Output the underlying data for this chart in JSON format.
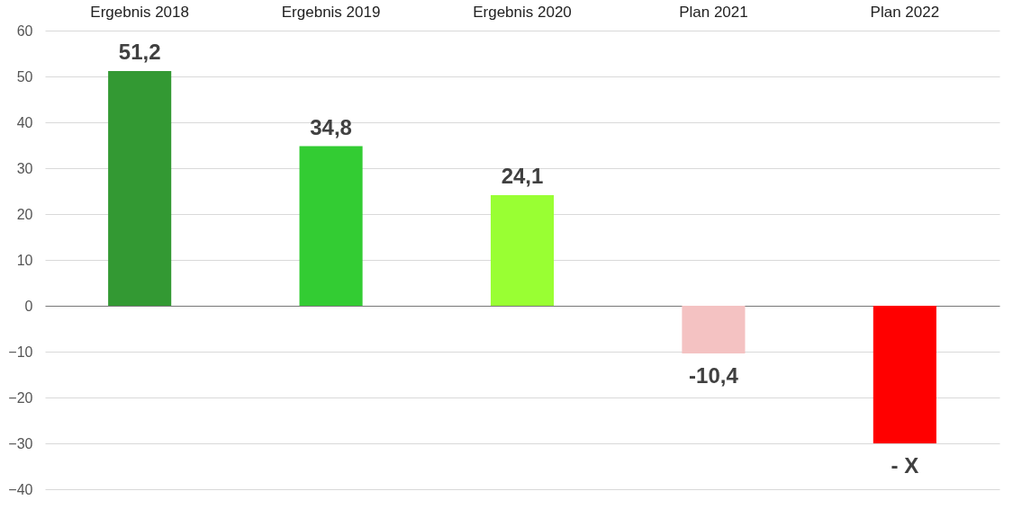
{
  "chart_data": {
    "type": "bar",
    "categories": [
      "Ergebnis 2018",
      "Ergebnis 2019",
      "Ergebnis 2020",
      "Plan 2021",
      "Plan 2022"
    ],
    "values": [
      51.2,
      34.8,
      24.1,
      -10.4,
      -30
    ],
    "colors": [
      "#339933",
      "#33cc33",
      "#99ff33",
      "#f4c2c2",
      "#ff0000"
    ],
    "value_labels": [
      "51,2",
      "34,8",
      "24,1",
      "-10,4",
      "- X"
    ],
    "ylim": [
      -40,
      60
    ],
    "yticks": [
      -40,
      -30,
      -20,
      -10,
      0,
      10,
      20,
      30,
      40,
      50,
      60
    ],
    "grid": "y"
  }
}
